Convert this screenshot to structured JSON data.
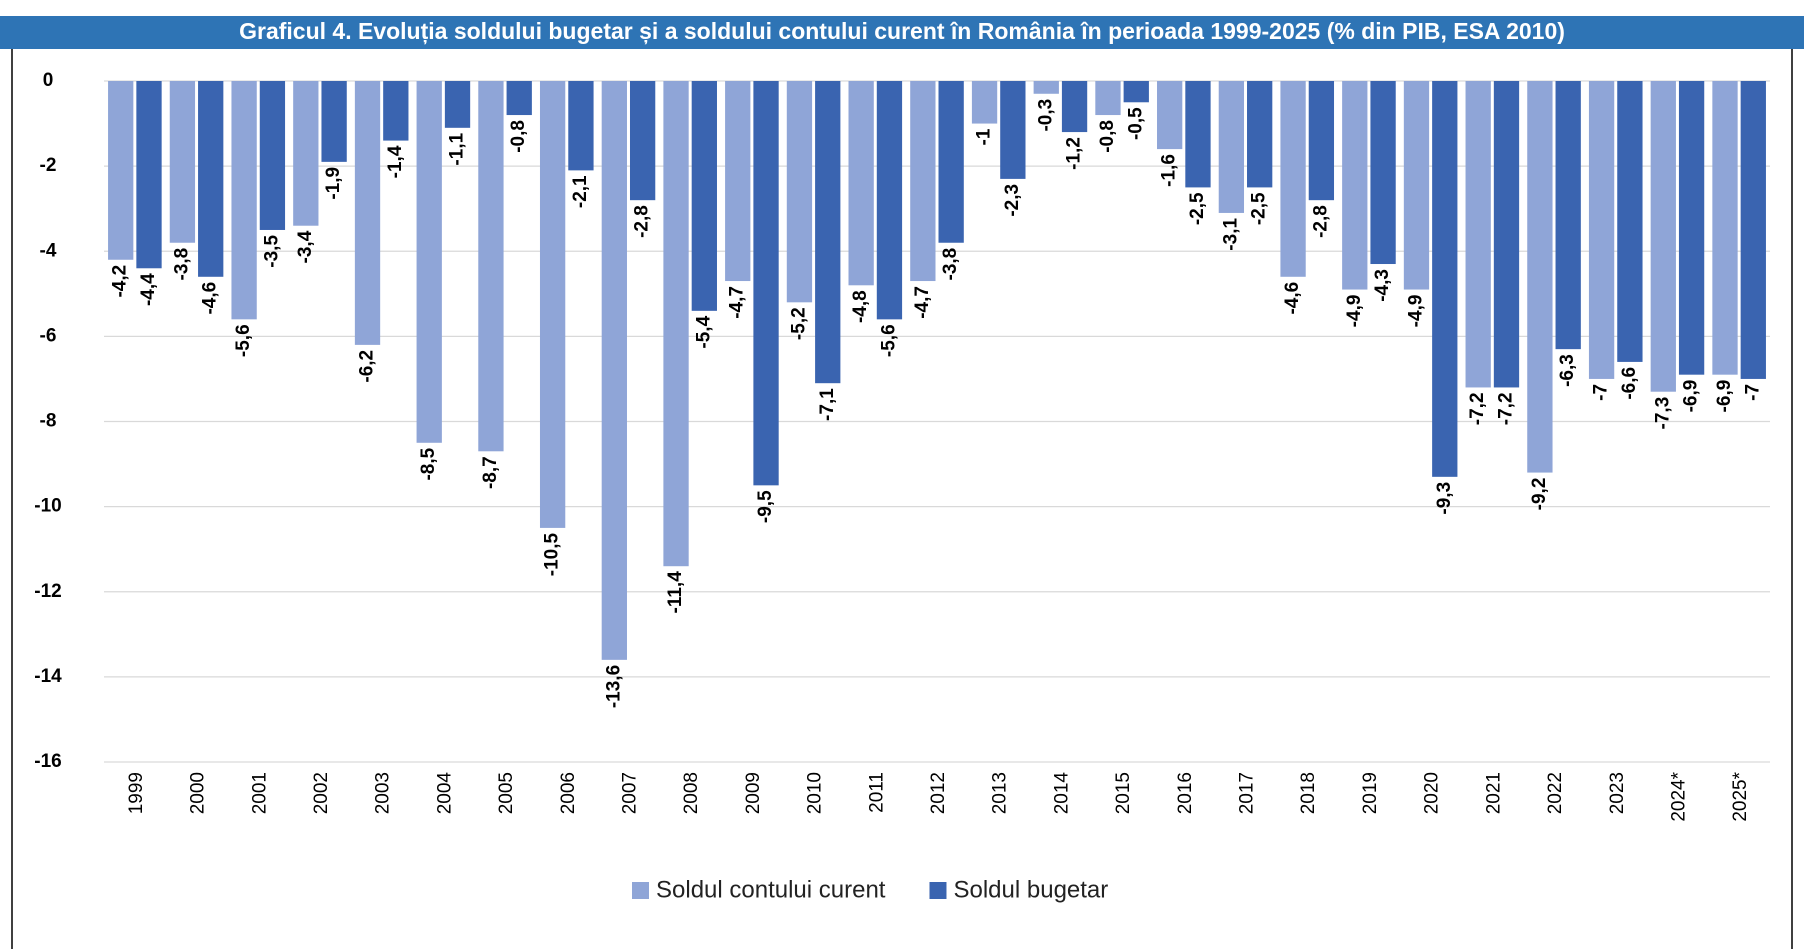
{
  "chart_data": {
    "type": "bar",
    "title": "Graficul 4. Evoluția soldului bugetar și a soldului contului curent în România în perioada 1999-2025 (% din PIB, ESA 2010)",
    "categories": [
      "1999",
      "2000",
      "2001",
      "2002",
      "2003",
      "2004",
      "2005",
      "2006",
      "2007",
      "2008",
      "2009",
      "2010",
      "2011",
      "2012",
      "2013",
      "2014",
      "2015",
      "2016",
      "2017",
      "2018",
      "2019",
      "2020",
      "2021",
      "2022",
      "2023",
      "2024*",
      "2025*"
    ],
    "series": [
      {
        "name": "Soldul contului curent",
        "color": "#8fa5d7",
        "values": [
          -4.2,
          -3.8,
          -5.6,
          -3.4,
          -6.2,
          -8.5,
          -8.7,
          -10.5,
          -13.6,
          -11.4,
          -4.7,
          -5.2,
          -4.8,
          -4.7,
          -1,
          -0.3,
          -0.8,
          -1.6,
          -3.1,
          -4.6,
          -4.9,
          -4.9,
          -7.2,
          -9.2,
          -7,
          -7.3,
          -6.9
        ],
        "value_labels": [
          "-4,2",
          "-3,8",
          "-5,6",
          "-3,4",
          "-6,2",
          "-8,5",
          "-8,7",
          "-10,5",
          "-13,6",
          "-11,4",
          "-4,7",
          "-5,2",
          "-4,8",
          "-4,7",
          "-1",
          "-0,3",
          "-0,8",
          "-1,6",
          "-3,1",
          "-4,6",
          "-4,9",
          "-4,9",
          "-7,2",
          "-9,2",
          "-7",
          "-7,3",
          "-6,9"
        ]
      },
      {
        "name": "Soldul bugetar",
        "color": "#3a64b0",
        "values": [
          -4.4,
          -4.6,
          -3.5,
          -1.9,
          -1.4,
          -1.1,
          -0.8,
          -2.1,
          -2.8,
          -5.4,
          -9.5,
          -7.1,
          -5.6,
          -3.8,
          -2.3,
          -1.2,
          -0.5,
          -2.5,
          -2.5,
          -2.8,
          -4.3,
          -9.3,
          -7.2,
          -6.3,
          -6.6,
          -6.9,
          -7
        ],
        "value_labels": [
          "-4,4",
          "-4,6",
          "-3,5",
          "-1,9",
          "-1,4",
          "-1,1",
          "-0,8",
          "-2,1",
          "-2,8",
          "-5,4",
          "-9,5",
          "-7,1",
          "-5,6",
          "-3,8",
          "-2,3",
          "-1,2",
          "-0,5",
          "-2,5",
          "-2,5",
          "-2,8",
          "-4,3",
          "-9,3",
          "-7,2",
          "-6,3",
          "-6,6",
          "-6,9",
          "-7"
        ]
      }
    ],
    "ylim": [
      -16,
      0
    ],
    "yticks": [
      0,
      -2,
      -4,
      -6,
      -8,
      -10,
      -12,
      -14,
      -16
    ],
    "grid": true,
    "legend": "bottom"
  }
}
